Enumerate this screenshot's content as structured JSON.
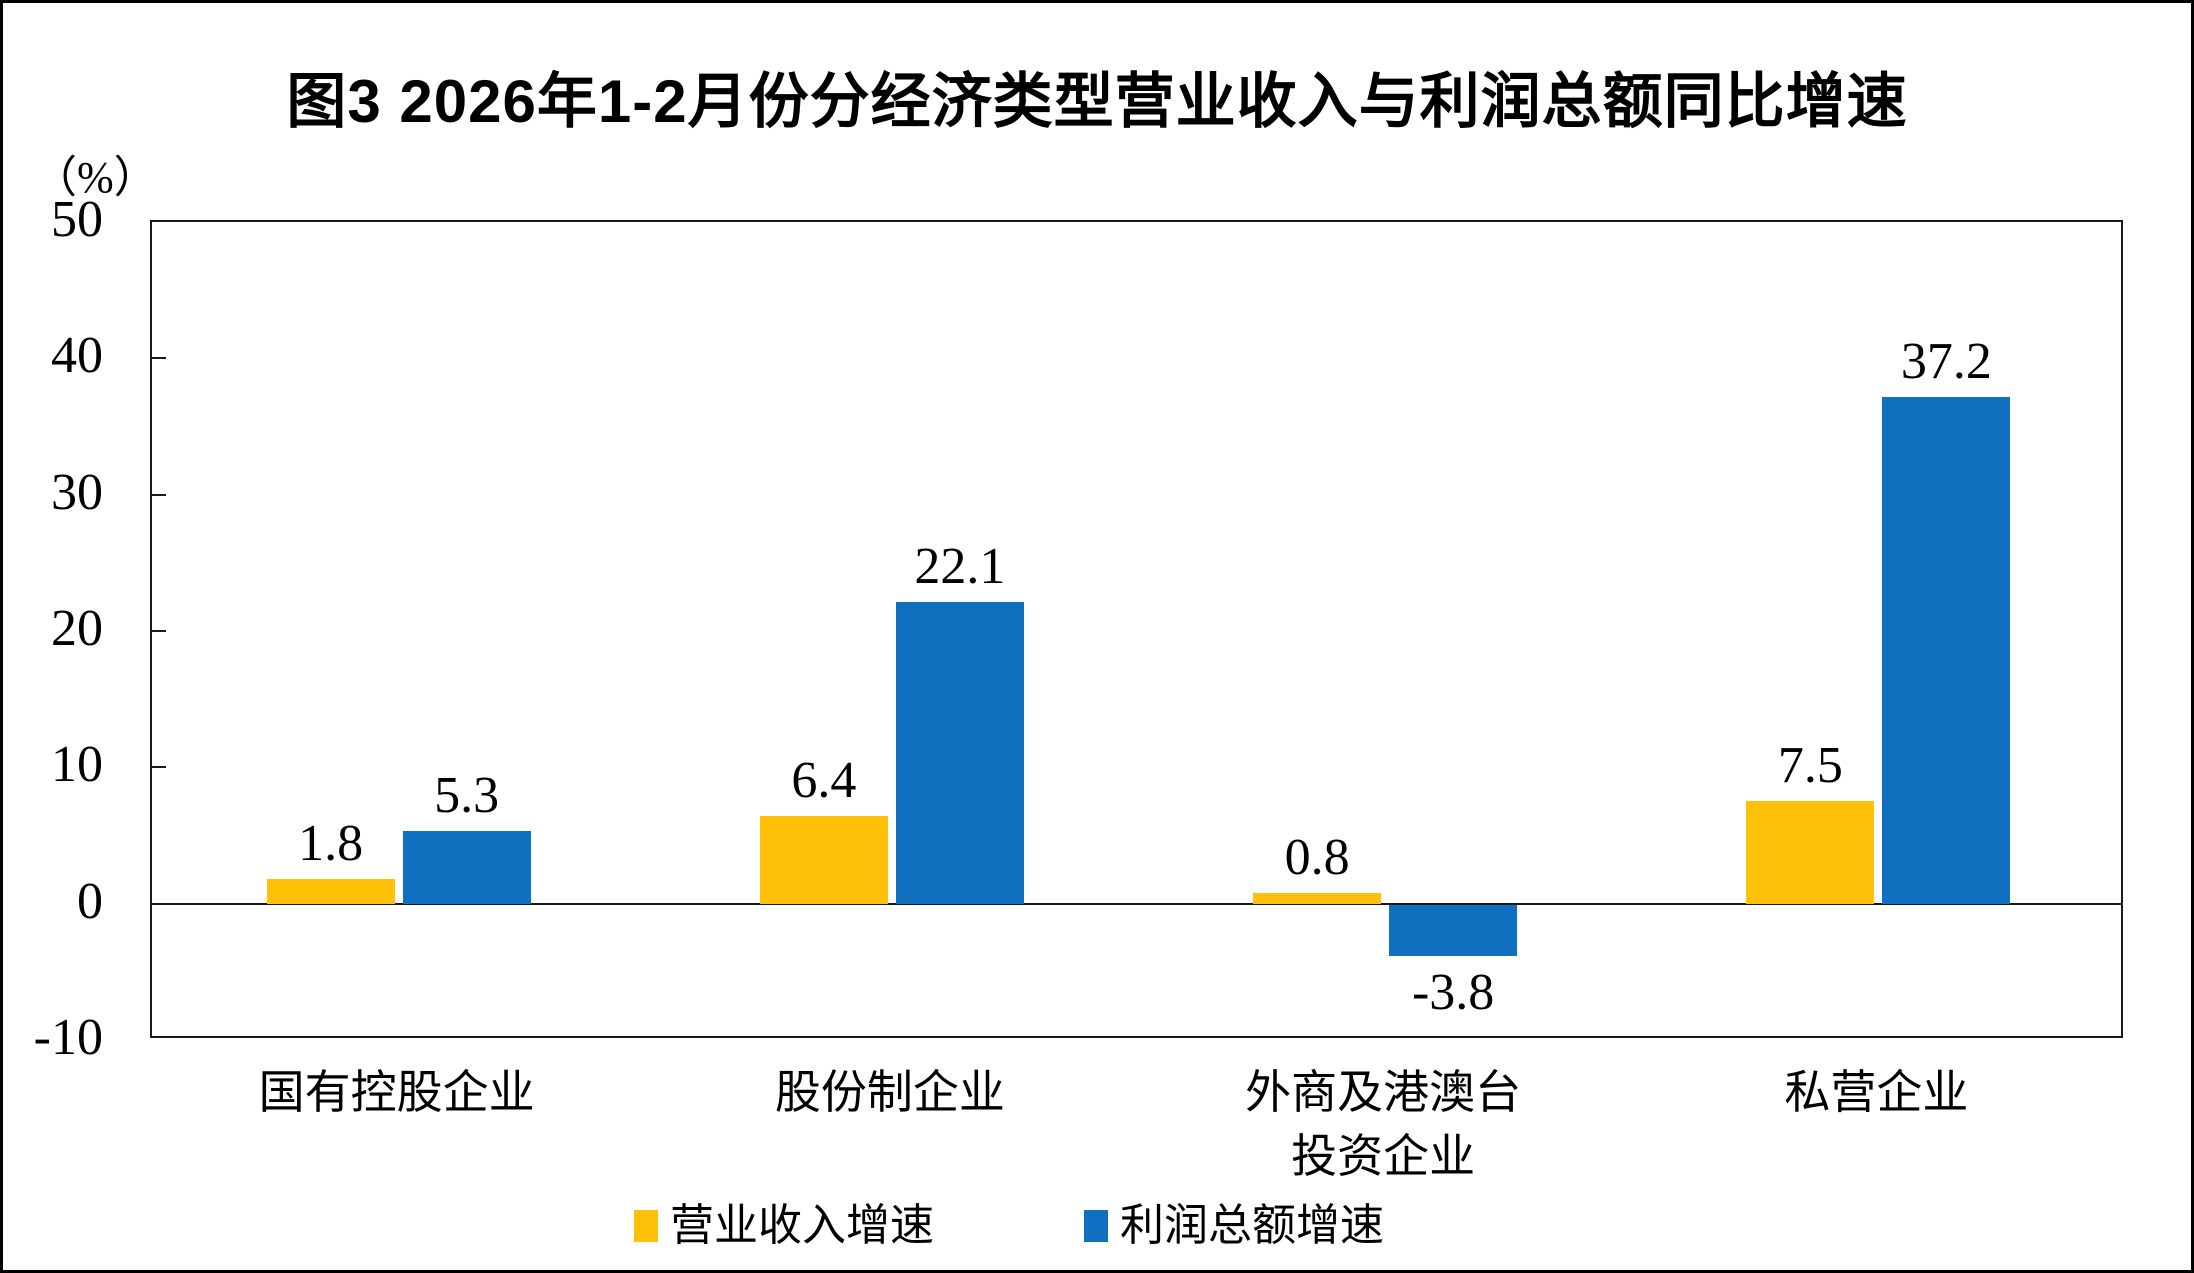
{
  "chart_data": {
    "type": "bar",
    "title": "图3 2026年1-2月份分经济类型营业收入与利润总额同比增速",
    "y_unit": "（%）",
    "categories": [
      "国有控股企业",
      "股份制企业",
      "外商及港澳台\n投资企业",
      "私营企业"
    ],
    "series": [
      {
        "key": "revenue-growth",
        "name": "营业收入增速",
        "color": "#FFC008",
        "values": [
          1.8,
          6.4,
          0.8,
          7.5
        ]
      },
      {
        "key": "profit-growth",
        "name": "利润总额增速",
        "color": "#0E70BE",
        "values": [
          5.3,
          22.1,
          -3.8,
          37.2
        ]
      }
    ],
    "ylim": [
      -10,
      50
    ],
    "y_step": 10,
    "y_tick_labels": [
      "50",
      "40",
      "30",
      "20",
      "10",
      "0",
      "-10"
    ],
    "grid": "none",
    "zero_baseline": true,
    "legend_position": "bottom",
    "axis_color": "#1a1a1a"
  }
}
